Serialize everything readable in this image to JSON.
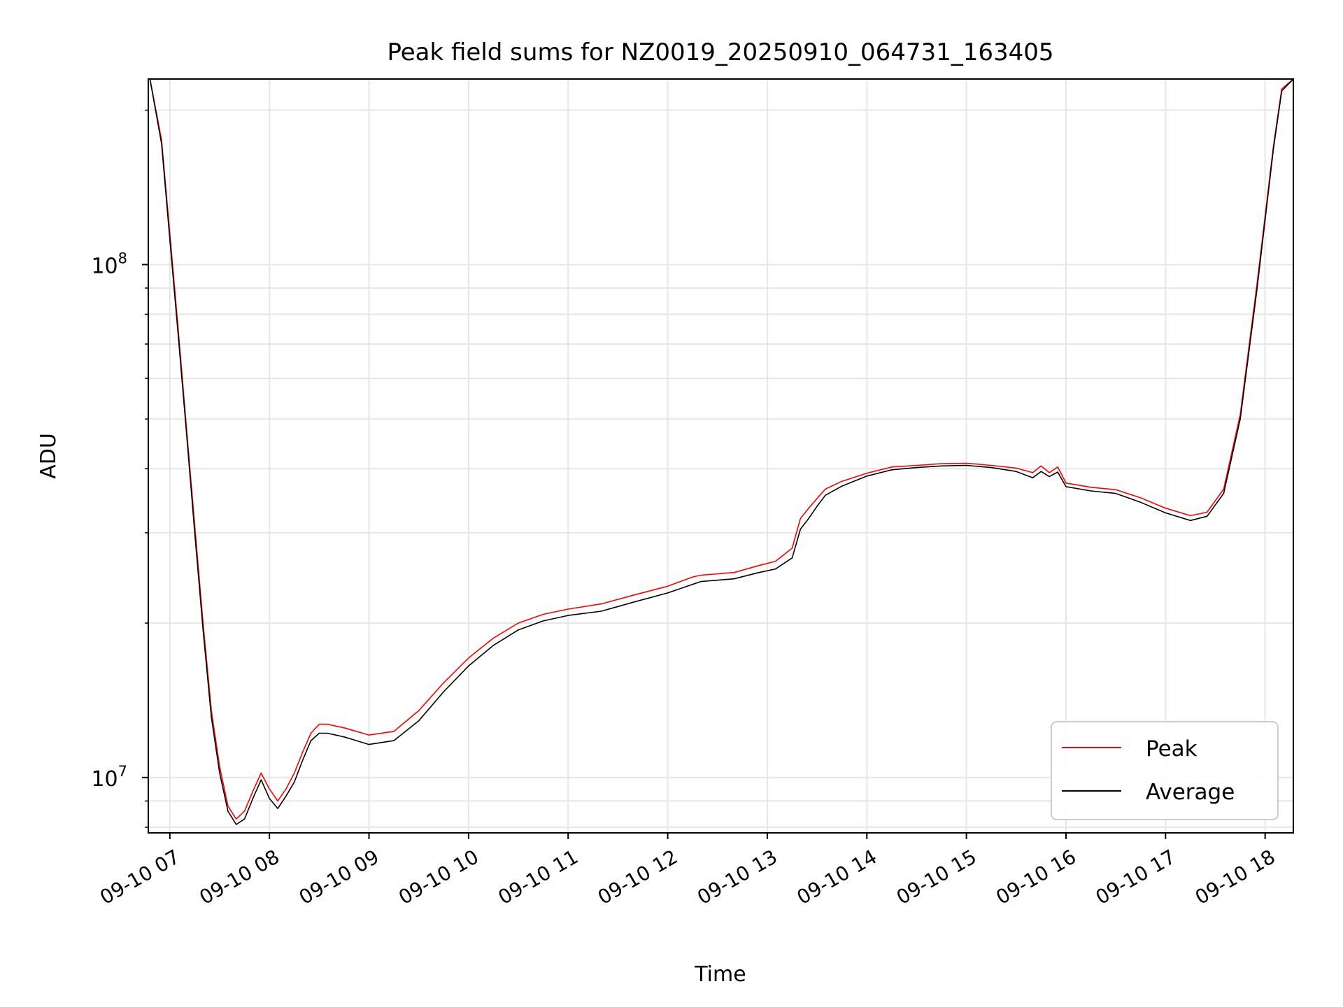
{
  "chart_data": {
    "type": "line",
    "title": "Peak field sums for NZ0019_20250910_064731_163405",
    "xlabel": "Time",
    "ylabel": "ADU",
    "yscale": "log",
    "grid": true,
    "legend_position": "lower-right",
    "xlim": [
      "2025-09-10 06:47",
      "2025-09-10 18:17"
    ],
    "ylim": [
      7800000,
      230000000
    ],
    "x_ticks": [
      "09-10 07",
      "09-10 08",
      "09-10 09",
      "09-10 10",
      "09-10 11",
      "09-10 12",
      "09-10 13",
      "09-10 14",
      "09-10 15",
      "09-10 16",
      "09-10 17",
      "09-10 18"
    ],
    "y_ticks": [
      {
        "value": 10000000,
        "base": "10",
        "exp": "7"
      },
      {
        "value": 100000000,
        "base": "10",
        "exp": "8"
      }
    ],
    "x": [
      "2025-09-10 06:48",
      "2025-09-10 06:55",
      "2025-09-10 07:00",
      "2025-09-10 07:05",
      "2025-09-10 07:10",
      "2025-09-10 07:15",
      "2025-09-10 07:20",
      "2025-09-10 07:25",
      "2025-09-10 07:30",
      "2025-09-10 07:35",
      "2025-09-10 07:40",
      "2025-09-10 07:45",
      "2025-09-10 07:50",
      "2025-09-10 07:55",
      "2025-09-10 08:00",
      "2025-09-10 08:05",
      "2025-09-10 08:10",
      "2025-09-10 08:15",
      "2025-09-10 08:20",
      "2025-09-10 08:25",
      "2025-09-10 08:30",
      "2025-09-10 08:35",
      "2025-09-10 08:45",
      "2025-09-10 09:00",
      "2025-09-10 09:15",
      "2025-09-10 09:30",
      "2025-09-10 09:45",
      "2025-09-10 10:00",
      "2025-09-10 10:15",
      "2025-09-10 10:30",
      "2025-09-10 10:45",
      "2025-09-10 11:00",
      "2025-09-10 11:20",
      "2025-09-10 11:40",
      "2025-09-10 12:00",
      "2025-09-10 12:15",
      "2025-09-10 12:20",
      "2025-09-10 12:40",
      "2025-09-10 12:55",
      "2025-09-10 13:05",
      "2025-09-10 13:15",
      "2025-09-10 13:20",
      "2025-09-10 13:25",
      "2025-09-10 13:30",
      "2025-09-10 13:35",
      "2025-09-10 13:45",
      "2025-09-10 14:00",
      "2025-09-10 14:15",
      "2025-09-10 14:30",
      "2025-09-10 14:45",
      "2025-09-10 15:00",
      "2025-09-10 15:15",
      "2025-09-10 15:30",
      "2025-09-10 15:40",
      "2025-09-10 15:45",
      "2025-09-10 15:50",
      "2025-09-10 15:55",
      "2025-09-10 16:00",
      "2025-09-10 16:15",
      "2025-09-10 16:30",
      "2025-09-10 16:45",
      "2025-09-10 17:00",
      "2025-09-10 17:15",
      "2025-09-10 17:25",
      "2025-09-10 17:35",
      "2025-09-10 17:45",
      "2025-09-10 17:55",
      "2025-09-10 18:05",
      "2025-09-10 18:10",
      "2025-09-10 18:17"
    ],
    "series": [
      {
        "name": "Peak",
        "color": "#ff0000",
        "values": [
          230000000,
          175000000,
          115000000,
          75000000,
          48000000,
          31000000,
          20000000,
          13500000,
          10500000,
          8800000,
          8300000,
          8600000,
          9400000,
          10200000,
          9500000,
          9000000,
          9500000,
          10200000,
          11200000,
          12200000,
          12700000,
          12700000,
          12500000,
          12100000,
          12300000,
          13500000,
          15300000,
          17100000,
          18700000,
          20000000,
          20800000,
          21300000,
          21800000,
          22700000,
          23600000,
          24600000,
          24800000,
          25100000,
          25900000,
          26400000,
          28000000,
          32000000,
          33500000,
          35000000,
          36500000,
          37800000,
          39200000,
          40300000,
          40600000,
          40900000,
          41000000,
          40600000,
          40100000,
          39300000,
          40500000,
          39300000,
          40300000,
          37500000,
          36800000,
          36400000,
          35100000,
          33500000,
          32400000,
          32900000,
          36500000,
          51000000,
          91000000,
          170000000,
          220000000,
          230000000
        ]
      },
      {
        "name": "Average",
        "color": "#000000",
        "values": [
          230000000,
          172000000,
          112000000,
          73000000,
          47000000,
          30000000,
          19400000,
          13100000,
          10200000,
          8600000,
          8100000,
          8300000,
          9100000,
          9900000,
          9100000,
          8700000,
          9200000,
          9800000,
          10800000,
          11800000,
          12200000,
          12200000,
          12000000,
          11600000,
          11800000,
          12900000,
          14700000,
          16500000,
          18100000,
          19400000,
          20200000,
          20700000,
          21100000,
          22000000,
          22900000,
          23800000,
          24100000,
          24400000,
          25100000,
          25500000,
          26800000,
          30500000,
          32000000,
          33800000,
          35500000,
          37000000,
          38700000,
          39800000,
          40200000,
          40500000,
          40600000,
          40200000,
          39500000,
          38400000,
          39500000,
          38600000,
          39400000,
          36900000,
          36200000,
          35800000,
          34400000,
          32800000,
          31700000,
          32300000,
          35800000,
          50000000,
          89000000,
          168000000,
          218000000,
          230000000
        ]
      }
    ]
  }
}
